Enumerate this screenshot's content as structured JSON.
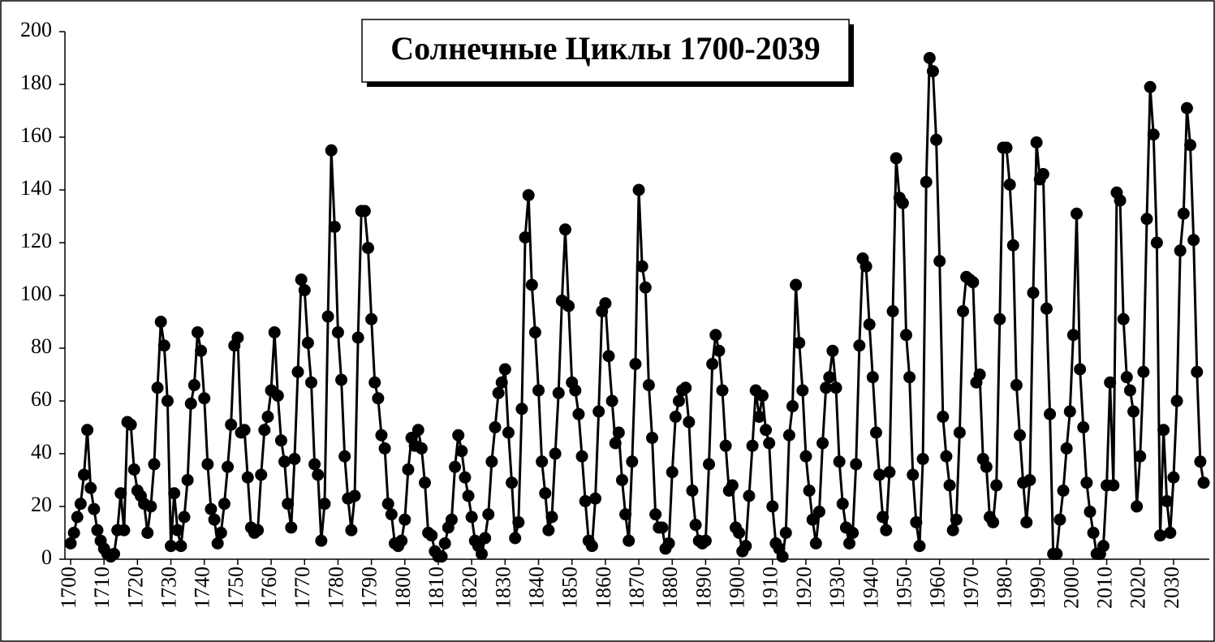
{
  "chart_data": {
    "type": "line",
    "title": "Солнечные Циклы 1700-2039",
    "color": "#000000",
    "markers": true,
    "xlim": [
      1698.3,
      2040.7
    ],
    "ylim": [
      0,
      200
    ],
    "yticks": [
      0,
      20,
      40,
      60,
      80,
      100,
      120,
      140,
      160,
      180,
      200
    ],
    "xticks": [
      1700,
      1710,
      1720,
      1730,
      1740,
      1750,
      1760,
      1770,
      1780,
      1790,
      1800,
      1810,
      1820,
      1830,
      1840,
      1850,
      1860,
      1870,
      1880,
      1890,
      1900,
      1910,
      1920,
      1930,
      1940,
      1950,
      1960,
      1970,
      1980,
      1990,
      2000,
      2010,
      2020,
      2030
    ],
    "x": [
      1700,
      1701,
      1702,
      1703,
      1704,
      1705,
      1706,
      1707,
      1708,
      1709,
      1710,
      1711,
      1712,
      1713,
      1714,
      1715,
      1716,
      1717,
      1718,
      1719,
      1720,
      1721,
      1722,
      1723,
      1724,
      1725,
      1726,
      1727,
      1728,
      1729,
      1730,
      1731,
      1732,
      1733,
      1734,
      1735,
      1736,
      1737,
      1738,
      1739,
      1740,
      1741,
      1742,
      1743,
      1744,
      1745,
      1746,
      1747,
      1748,
      1749,
      1750,
      1751,
      1752,
      1753,
      1754,
      1755,
      1756,
      1757,
      1758,
      1759,
      1760,
      1761,
      1762,
      1763,
      1764,
      1765,
      1766,
      1767,
      1768,
      1769,
      1770,
      1771,
      1772,
      1773,
      1774,
      1775,
      1776,
      1777,
      1778,
      1779,
      1780,
      1781,
      1782,
      1783,
      1784,
      1785,
      1786,
      1787,
      1788,
      1789,
      1790,
      1791,
      1792,
      1793,
      1794,
      1795,
      1796,
      1797,
      1798,
      1799,
      1800,
      1801,
      1802,
      1803,
      1804,
      1805,
      1806,
      1807,
      1808,
      1809,
      1810,
      1811,
      1812,
      1813,
      1814,
      1815,
      1816,
      1817,
      1818,
      1819,
      1820,
      1821,
      1822,
      1823,
      1824,
      1825,
      1826,
      1827,
      1828,
      1829,
      1830,
      1831,
      1832,
      1833,
      1834,
      1835,
      1836,
      1837,
      1838,
      1839,
      1840,
      1841,
      1842,
      1843,
      1844,
      1845,
      1846,
      1847,
      1848,
      1849,
      1850,
      1851,
      1852,
      1853,
      1854,
      1855,
      1856,
      1857,
      1858,
      1859,
      1860,
      1861,
      1862,
      1863,
      1864,
      1865,
      1866,
      1867,
      1868,
      1869,
      1870,
      1871,
      1872,
      1873,
      1874,
      1875,
      1876,
      1877,
      1878,
      1879,
      1880,
      1881,
      1882,
      1883,
      1884,
      1885,
      1886,
      1887,
      1888,
      1889,
      1890,
      1891,
      1892,
      1893,
      1894,
      1895,
      1896,
      1897,
      1898,
      1899,
      1900,
      1901,
      1902,
      1903,
      1904,
      1905,
      1906,
      1907,
      1908,
      1909,
      1910,
      1911,
      1912,
      1913,
      1914,
      1915,
      1916,
      1917,
      1918,
      1919,
      1920,
      1921,
      1922,
      1923,
      1924,
      1925,
      1926,
      1927,
      1928,
      1929,
      1930,
      1931,
      1932,
      1933,
      1934,
      1935,
      1936,
      1937,
      1938,
      1939,
      1940,
      1941,
      1942,
      1943,
      1944,
      1945,
      1946,
      1947,
      1948,
      1949,
      1950,
      1951,
      1952,
      1953,
      1954,
      1955,
      1956,
      1957,
      1958,
      1959,
      1960,
      1961,
      1962,
      1963,
      1964,
      1965,
      1966,
      1967,
      1968,
      1969,
      1970,
      1971,
      1972,
      1973,
      1974,
      1975,
      1976,
      1977,
      1978,
      1979,
      1980,
      1981,
      1982,
      1983,
      1984,
      1985,
      1986,
      1987,
      1988,
      1989,
      1990,
      1991,
      1992,
      1993,
      1994,
      1995,
      1996,
      1997,
      1998,
      1999,
      2000,
      2001,
      2002,
      2003,
      2004,
      2005,
      2006,
      2007,
      2008,
      2009,
      2010,
      2011,
      2012,
      2013,
      2014,
      2015,
      2016,
      2017,
      2018,
      2019,
      2020,
      2021,
      2022,
      2023,
      2024,
      2025,
      2026,
      2027,
      2028,
      2029,
      2030,
      2031,
      2032,
      2033,
      2034,
      2035,
      2036,
      2037,
      2038,
      2039
    ],
    "values": [
      6,
      10,
      16,
      21,
      32,
      49,
      27,
      19,
      11,
      7,
      4,
      2,
      1,
      2,
      11,
      25,
      11,
      52,
      51,
      34,
      26,
      24,
      21,
      10,
      20,
      36,
      65,
      90,
      81,
      60,
      5,
      25,
      11,
      5,
      16,
      30,
      59,
      66,
      86,
      79,
      61,
      36,
      19,
      15,
      6,
      10,
      21,
      35,
      51,
      81,
      84,
      48,
      49,
      31,
      12,
      10,
      11,
      32,
      49,
      54,
      64,
      86,
      62,
      45,
      37,
      21,
      12,
      38,
      71,
      106,
      102,
      82,
      67,
      36,
      32,
      7,
      21,
      92,
      155,
      126,
      86,
      68,
      39,
      23,
      11,
      24,
      84,
      132,
      132,
      118,
      91,
      67,
      61,
      47,
      42,
      21,
      17,
      6,
      5,
      7,
      15,
      34,
      46,
      43,
      49,
      42,
      29,
      10,
      9,
      3,
      1,
      1,
      6,
      12,
      15,
      35,
      47,
      41,
      31,
      24,
      16,
      7,
      5,
      2,
      8,
      17,
      37,
      50,
      63,
      67,
      72,
      48,
      29,
      8,
      14,
      57,
      122,
      138,
      104,
      86,
      64,
      37,
      25,
      11,
      16,
      40,
      63,
      98,
      125,
      96,
      67,
      64,
      55,
      39,
      22,
      7,
      5,
      23,
      56,
      94,
      97,
      77,
      60,
      44,
      48,
      30,
      17,
      7,
      37,
      74,
      140,
      111,
      103,
      66,
      46,
      17,
      12,
      12,
      4,
      6,
      33,
      54,
      60,
      64,
      65,
      52,
      26,
      13,
      7,
      6,
      7,
      36,
      74,
      85,
      79,
      64,
      43,
      26,
      28,
      12,
      10,
      3,
      5,
      24,
      43,
      64,
      54,
      62,
      49,
      44,
      20,
      6,
      4,
      1,
      10,
      47,
      58,
      104,
      82,
      64,
      39,
      26,
      15,
      6,
      18,
      44,
      65,
      69,
      79,
      65,
      37,
      21,
      12,
      6,
      10,
      36,
      81,
      114,
      111,
      89,
      69,
      48,
      32,
      16,
      11,
      33,
      94,
      152,
      137,
      135,
      85,
      69,
      32,
      14,
      5,
      38,
      143,
      190,
      185,
      159,
      113,
      54,
      39,
      28,
      11,
      15,
      48,
      94,
      107,
      106,
      105,
      67,
      70,
      38,
      35,
      16,
      14,
      28,
      91,
      156,
      156,
      142,
      119,
      66,
      47,
      29,
      14,
      30,
      101,
      158,
      144,
      146,
      95,
      55,
      2,
      2,
      15,
      26,
      42,
      56,
      85,
      131,
      72,
      50,
      29,
      18,
      10,
      2,
      2,
      5,
      28,
      67,
      28,
      139,
      136,
      91,
      69,
      64,
      56,
      20,
      39,
      71,
      129,
      179,
      161,
      120,
      9,
      49,
      22,
      10,
      31,
      60,
      117,
      131,
      171,
      157,
      121,
      71,
      37,
      29
    ]
  }
}
